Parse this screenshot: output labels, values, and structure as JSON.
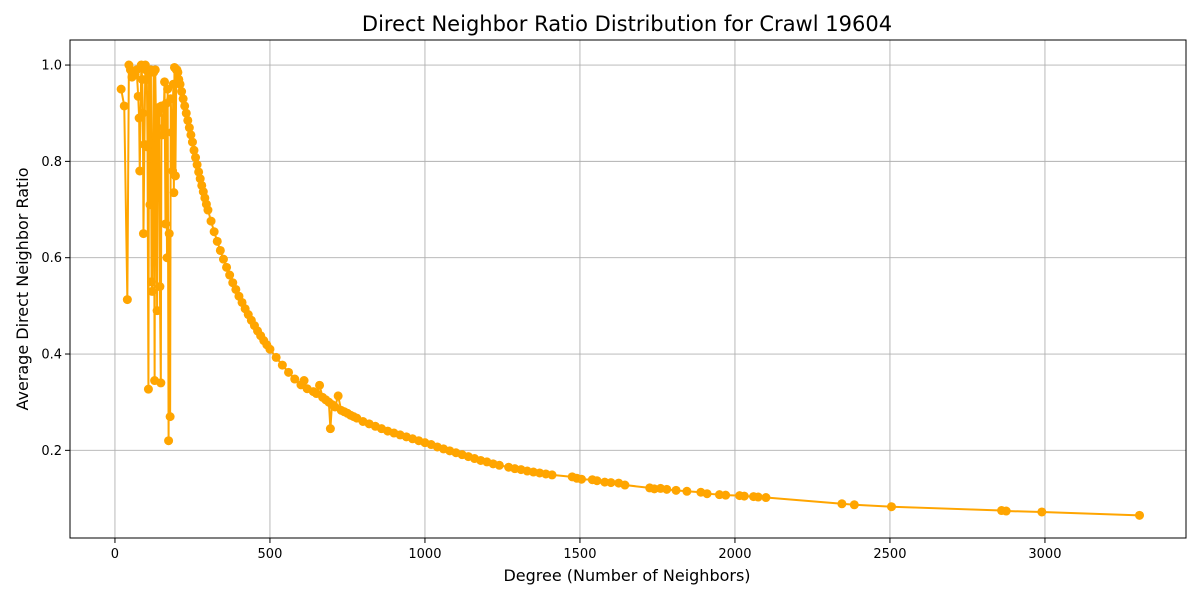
{
  "chart_data": {
    "type": "line",
    "title": "Direct Neighbor Ratio Distribution for Crawl 19604",
    "xlabel": "Degree (Number of Neighbors)",
    "ylabel": "Average Direct Neighbor Ratio",
    "xlim": [
      -145,
      3455
    ],
    "ylim": [
      0.018,
      1.052
    ],
    "xticks": [
      0,
      500,
      1000,
      1500,
      2000,
      2500,
      3000
    ],
    "yticks": [
      0.2,
      0.4,
      0.6,
      0.8,
      1.0
    ],
    "xtick_labels": [
      "0",
      "500",
      "1000",
      "1500",
      "2000",
      "2500",
      "3000"
    ],
    "ytick_labels": [
      "0.2",
      "0.4",
      "0.6",
      "0.8",
      "1.0"
    ],
    "grid": true,
    "legend": "none",
    "series": [
      {
        "color": "#ffa500",
        "marker": "circle",
        "points": [
          [
            20,
            0.95
          ],
          [
            30,
            0.915
          ],
          [
            40,
            0.513
          ],
          [
            45,
            1.0
          ],
          [
            50,
            0.99
          ],
          [
            55,
            0.975
          ],
          [
            60,
            0.985
          ],
          [
            65,
            0.98
          ],
          [
            70,
            0.99
          ],
          [
            75,
            0.935
          ],
          [
            78,
            0.89
          ],
          [
            80,
            0.78
          ],
          [
            85,
            1.0
          ],
          [
            88,
            0.97
          ],
          [
            90,
            0.9
          ],
          [
            92,
            0.65
          ],
          [
            95,
            0.835
          ],
          [
            98,
            1.0
          ],
          [
            100,
            0.99
          ],
          [
            103,
            0.97
          ],
          [
            105,
            0.83
          ],
          [
            108,
            0.327
          ],
          [
            110,
            0.985
          ],
          [
            113,
            0.71
          ],
          [
            116,
            0.99
          ],
          [
            118,
            0.55
          ],
          [
            120,
            0.53
          ],
          [
            122,
            0.79
          ],
          [
            125,
            0.985
          ],
          [
            128,
            0.345
          ],
          [
            130,
            0.99
          ],
          [
            133,
            0.85
          ],
          [
            136,
            0.49
          ],
          [
            138,
            0.9
          ],
          [
            142,
            0.912
          ],
          [
            145,
            0.54
          ],
          [
            148,
            0.34
          ],
          [
            150,
            0.915
          ],
          [
            153,
            0.855
          ],
          [
            156,
            0.87
          ],
          [
            158,
            0.91
          ],
          [
            160,
            0.965
          ],
          [
            163,
            0.67
          ],
          [
            165,
            0.92
          ],
          [
            168,
            0.6
          ],
          [
            170,
            0.95
          ],
          [
            173,
            0.22
          ],
          [
            175,
            0.65
          ],
          [
            178,
            0.27
          ],
          [
            180,
            0.93
          ],
          [
            183,
            0.86
          ],
          [
            186,
            0.78
          ],
          [
            188,
            0.96
          ],
          [
            190,
            0.735
          ],
          [
            192,
            0.995
          ],
          [
            195,
            0.77
          ],
          [
            198,
            0.99
          ],
          [
            200,
            0.99
          ],
          [
            203,
            0.985
          ],
          [
            206,
            0.97
          ],
          [
            210,
            0.96
          ],
          [
            215,
            0.945
          ],
          [
            220,
            0.93
          ],
          [
            225,
            0.915
          ],
          [
            230,
            0.9
          ],
          [
            235,
            0.885
          ],
          [
            240,
            0.87
          ],
          [
            245,
            0.855
          ],
          [
            250,
            0.84
          ],
          [
            255,
            0.823
          ],
          [
            260,
            0.808
          ],
          [
            265,
            0.793
          ],
          [
            270,
            0.778
          ],
          [
            275,
            0.764
          ],
          [
            280,
            0.75
          ],
          [
            285,
            0.737
          ],
          [
            290,
            0.724
          ],
          [
            295,
            0.711
          ],
          [
            300,
            0.699
          ],
          [
            310,
            0.676
          ],
          [
            320,
            0.654
          ],
          [
            330,
            0.634
          ],
          [
            340,
            0.615
          ],
          [
            350,
            0.597
          ],
          [
            360,
            0.58
          ],
          [
            370,
            0.564
          ],
          [
            380,
            0.548
          ],
          [
            390,
            0.534
          ],
          [
            400,
            0.52
          ],
          [
            410,
            0.507
          ],
          [
            420,
            0.494
          ],
          [
            430,
            0.482
          ],
          [
            440,
            0.47
          ],
          [
            450,
            0.459
          ],
          [
            460,
            0.448
          ],
          [
            470,
            0.438
          ],
          [
            480,
            0.428
          ],
          [
            490,
            0.419
          ],
          [
            500,
            0.41
          ],
          [
            520,
            0.393
          ],
          [
            540,
            0.377
          ],
          [
            560,
            0.362
          ],
          [
            580,
            0.348
          ],
          [
            600,
            0.336
          ],
          [
            610,
            0.345
          ],
          [
            620,
            0.328
          ],
          [
            640,
            0.322
          ],
          [
            650,
            0.318
          ],
          [
            660,
            0.335
          ],
          [
            670,
            0.31
          ],
          [
            680,
            0.305
          ],
          [
            690,
            0.3
          ],
          [
            695,
            0.245
          ],
          [
            700,
            0.295
          ],
          [
            710,
            0.29
          ],
          [
            720,
            0.313
          ],
          [
            730,
            0.283
          ],
          [
            740,
            0.28
          ],
          [
            750,
            0.277
          ],
          [
            760,
            0.273
          ],
          [
            770,
            0.27
          ],
          [
            780,
            0.267
          ],
          [
            800,
            0.26
          ],
          [
            820,
            0.255
          ],
          [
            840,
            0.25
          ],
          [
            860,
            0.245
          ],
          [
            880,
            0.24
          ],
          [
            900,
            0.236
          ],
          [
            920,
            0.232
          ],
          [
            940,
            0.228
          ],
          [
            960,
            0.224
          ],
          [
            980,
            0.22
          ],
          [
            1000,
            0.216
          ],
          [
            1020,
            0.212
          ],
          [
            1040,
            0.207
          ],
          [
            1060,
            0.203
          ],
          [
            1080,
            0.199
          ],
          [
            1100,
            0.195
          ],
          [
            1120,
            0.191
          ],
          [
            1140,
            0.187
          ],
          [
            1160,
            0.183
          ],
          [
            1180,
            0.179
          ],
          [
            1200,
            0.176
          ],
          [
            1220,
            0.172
          ],
          [
            1240,
            0.169
          ],
          [
            1270,
            0.165
          ],
          [
            1290,
            0.162
          ],
          [
            1310,
            0.16
          ],
          [
            1330,
            0.157
          ],
          [
            1350,
            0.155
          ],
          [
            1370,
            0.153
          ],
          [
            1390,
            0.151
          ],
          [
            1410,
            0.149
          ],
          [
            1475,
            0.145
          ],
          [
            1490,
            0.142
          ],
          [
            1505,
            0.14
          ],
          [
            1540,
            0.139
          ],
          [
            1555,
            0.137
          ],
          [
            1580,
            0.134
          ],
          [
            1600,
            0.133
          ],
          [
            1625,
            0.132
          ],
          [
            1645,
            0.128
          ],
          [
            1725,
            0.122
          ],
          [
            1740,
            0.12
          ],
          [
            1760,
            0.121
          ],
          [
            1780,
            0.119
          ],
          [
            1810,
            0.117
          ],
          [
            1845,
            0.115
          ],
          [
            1890,
            0.113
          ],
          [
            1910,
            0.11
          ],
          [
            1950,
            0.108
          ],
          [
            1970,
            0.107
          ],
          [
            2015,
            0.106
          ],
          [
            2030,
            0.105
          ],
          [
            2060,
            0.104
          ],
          [
            2075,
            0.103
          ],
          [
            2100,
            0.102
          ],
          [
            2345,
            0.089
          ],
          [
            2385,
            0.087
          ],
          [
            2505,
            0.083
          ],
          [
            2860,
            0.075
          ],
          [
            2875,
            0.074
          ],
          [
            2990,
            0.072
          ],
          [
            3305,
            0.065
          ]
        ]
      }
    ]
  }
}
